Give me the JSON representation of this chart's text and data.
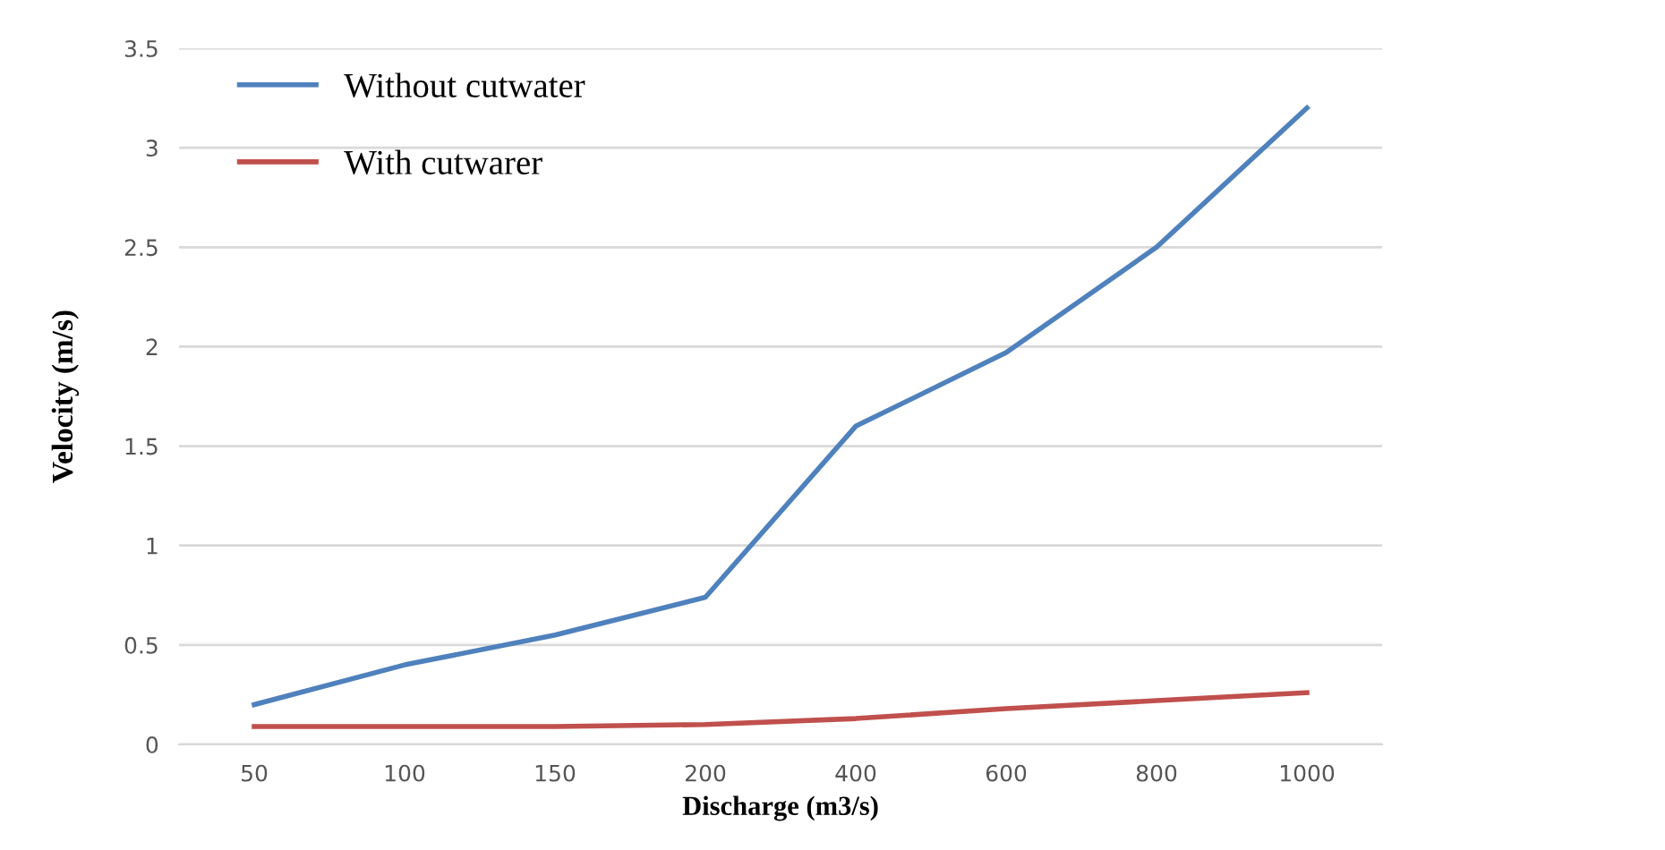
{
  "chart_data": {
    "type": "line",
    "xlabel": "Discharge (m3/s)",
    "ylabel": "Velocity (m/s)",
    "categories": [
      "50",
      "100",
      "150",
      "200",
      "400",
      "600",
      "800",
      "1000"
    ],
    "series": [
      {
        "name": "Without cutwater",
        "color": "#4f81bd",
        "values": [
          0.2,
          0.4,
          0.55,
          0.74,
          1.6,
          1.97,
          2.5,
          3.2
        ]
      },
      {
        "name": "With cutwarer",
        "color": "#c0504d",
        "values": [
          0.09,
          0.09,
          0.09,
          0.1,
          0.13,
          0.18,
          0.22,
          0.26
        ]
      }
    ],
    "ylim": [
      0,
      3.5
    ],
    "yticks": [
      0,
      0.5,
      1,
      1.5,
      2,
      2.5,
      3,
      3.5
    ],
    "grid": "y",
    "legend": "top left",
    "marker": "none",
    "line_style": "solid"
  }
}
